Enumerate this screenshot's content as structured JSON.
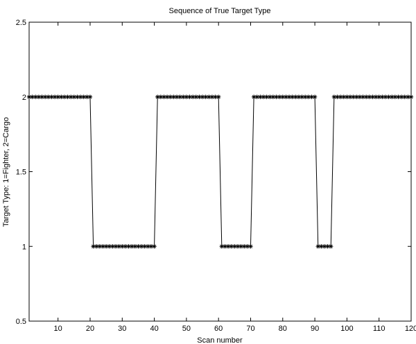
{
  "chart_data": {
    "type": "line",
    "title": "Sequence of True Target Type",
    "xlabel": "Scan number",
    "ylabel": "Target Type: 1=Fighter, 2=Cargo",
    "xlim": [
      1,
      120
    ],
    "ylim": [
      0.5,
      2.5
    ],
    "xticks": [
      10,
      20,
      30,
      40,
      50,
      60,
      70,
      80,
      90,
      100,
      110,
      120
    ],
    "yticks": [
      0.5,
      1,
      1.5,
      2,
      2.5
    ],
    "grid": false,
    "marker": "asterisk",
    "series": [
      {
        "x": [
          1,
          2,
          3,
          4,
          5,
          6,
          7,
          8,
          9,
          10,
          11,
          12,
          13,
          14,
          15,
          16,
          17,
          18,
          19,
          20,
          21,
          22,
          23,
          24,
          25,
          26,
          27,
          28,
          29,
          30,
          31,
          32,
          33,
          34,
          35,
          36,
          37,
          38,
          39,
          40,
          41,
          42,
          43,
          44,
          45,
          46,
          47,
          48,
          49,
          50,
          51,
          52,
          53,
          54,
          55,
          56,
          57,
          58,
          59,
          60,
          61,
          62,
          63,
          64,
          65,
          66,
          67,
          68,
          69,
          70,
          71,
          72,
          73,
          74,
          75,
          76,
          77,
          78,
          79,
          80,
          81,
          82,
          83,
          84,
          85,
          86,
          87,
          88,
          89,
          90,
          91,
          92,
          93,
          94,
          95,
          96,
          97,
          98,
          99,
          100,
          101,
          102,
          103,
          104,
          105,
          106,
          107,
          108,
          109,
          110,
          111,
          112,
          113,
          114,
          115,
          116,
          117,
          118,
          119,
          120
        ],
        "values": [
          2,
          2,
          2,
          2,
          2,
          2,
          2,
          2,
          2,
          2,
          2,
          2,
          2,
          2,
          2,
          2,
          2,
          2,
          2,
          2,
          1,
          1,
          1,
          1,
          1,
          1,
          1,
          1,
          1,
          1,
          1,
          1,
          1,
          1,
          1,
          1,
          1,
          1,
          1,
          1,
          2,
          2,
          2,
          2,
          2,
          2,
          2,
          2,
          2,
          2,
          2,
          2,
          2,
          2,
          2,
          2,
          2,
          2,
          2,
          2,
          1,
          1,
          1,
          1,
          1,
          1,
          1,
          1,
          1,
          1,
          2,
          2,
          2,
          2,
          2,
          2,
          2,
          2,
          2,
          2,
          2,
          2,
          2,
          2,
          2,
          2,
          2,
          2,
          2,
          2,
          1,
          1,
          1,
          1,
          1,
          2,
          2,
          2,
          2,
          2,
          2,
          2,
          2,
          2,
          2,
          2,
          2,
          2,
          2,
          2,
          2,
          2,
          2,
          2,
          2,
          2,
          2,
          2,
          2,
          2
        ]
      }
    ]
  }
}
